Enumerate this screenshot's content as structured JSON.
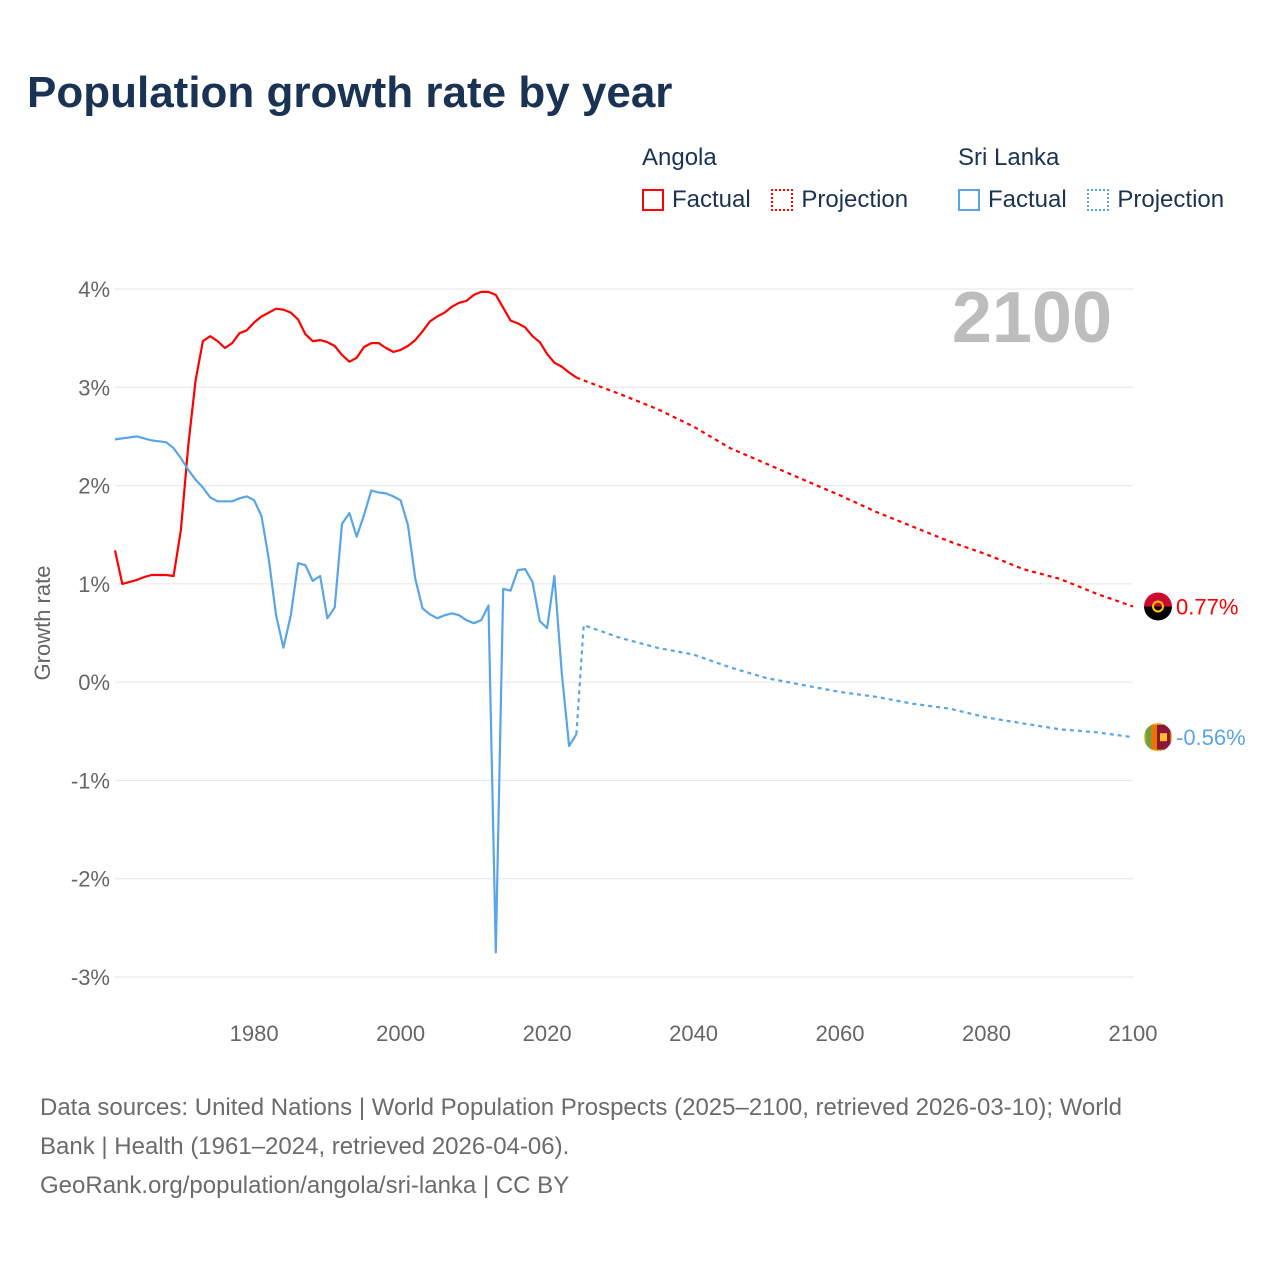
{
  "title": "Population growth rate by year",
  "year_label": "2100",
  "legend": [
    {
      "group": "Angola",
      "factual": "Factual",
      "projection": "Projection",
      "color": "#ff0000"
    },
    {
      "group": "Sri Lanka",
      "factual": "Factual",
      "projection": "Projection",
      "color": "#5aa5e8"
    }
  ],
  "source_line1": "Data sources: United Nations | World Population Prospects (2025–2100, retrieved 2026-03-10); World",
  "source_line2": "Bank | Health (1961–2024, retrieved 2026-04-06).",
  "source_line3": "GeoRank.org/population/angola/sri-lanka | CC BY",
  "chart_data": {
    "type": "line",
    "title": "Population growth rate by year",
    "xlabel": "",
    "ylabel": "Growth rate",
    "xlim": [
      1961,
      2100
    ],
    "ylim": [
      -3.3,
      4.3
    ],
    "x_ticks": [
      1980,
      2000,
      2020,
      2040,
      2060,
      2080,
      2100
    ],
    "y_ticks": [
      {
        "v": 4,
        "label": "4%"
      },
      {
        "v": 3,
        "label": "3%"
      },
      {
        "v": 2,
        "label": "2%"
      },
      {
        "v": 1,
        "label": "1%"
      },
      {
        "v": 0,
        "label": "0%"
      },
      {
        "v": -1,
        "label": "-1%"
      },
      {
        "v": -2,
        "label": "-2%"
      },
      {
        "v": -3,
        "label": "-3%"
      }
    ],
    "grid": true,
    "legend_position": "top-right",
    "series": [
      {
        "name": "Angola",
        "color": "#ff0000",
        "end_label": "0.77%",
        "flag": "angola-flag",
        "factual": {
          "start_year": 1961,
          "values": [
            1.34,
            1.0,
            1.02,
            1.04,
            1.07,
            1.09,
            1.09,
            1.09,
            1.08,
            1.55,
            2.4,
            3.07,
            3.47,
            3.52,
            3.47,
            3.4,
            3.45,
            3.55,
            3.58,
            3.66,
            3.72,
            3.76,
            3.8,
            3.79,
            3.76,
            3.69,
            3.54,
            3.47,
            3.48,
            3.46,
            3.42,
            3.33,
            3.26,
            3.3,
            3.41,
            3.45,
            3.45,
            3.4,
            3.36,
            3.38,
            3.42,
            3.48,
            3.57,
            3.67,
            3.72,
            3.76,
            3.82,
            3.86,
            3.88,
            3.94,
            3.97,
            3.97,
            3.94,
            3.81,
            3.68,
            3.65,
            3.61,
            3.52,
            3.46,
            3.34,
            3.25,
            3.21,
            3.15,
            3.1
          ]
        },
        "projection": {
          "years": [
            2024,
            2025,
            2030,
            2035,
            2040,
            2045,
            2050,
            2055,
            2060,
            2065,
            2070,
            2075,
            2080,
            2085,
            2090,
            2095,
            2100
          ],
          "values": [
            3.1,
            3.07,
            2.93,
            2.78,
            2.6,
            2.38,
            2.22,
            2.06,
            1.9,
            1.73,
            1.58,
            1.43,
            1.3,
            1.15,
            1.05,
            0.9,
            0.77
          ]
        }
      },
      {
        "name": "Sri Lanka",
        "color": "#5aa5e8",
        "end_label": "-0.56%",
        "flag": "sri-lanka-flag",
        "factual": {
          "start_year": 1961,
          "values": [
            2.47,
            2.48,
            2.49,
            2.5,
            2.48,
            2.46,
            2.45,
            2.44,
            2.38,
            2.28,
            2.16,
            2.06,
            1.98,
            1.88,
            1.84,
            1.84,
            1.84,
            1.87,
            1.89,
            1.85,
            1.69,
            1.25,
            0.68,
            0.35,
            0.68,
            1.21,
            1.19,
            1.03,
            1.08,
            0.65,
            0.76,
            1.61,
            1.72,
            1.48,
            1.7,
            1.95,
            1.93,
            1.92,
            1.89,
            1.85,
            1.6,
            1.05,
            0.75,
            0.69,
            0.65,
            0.68,
            0.7,
            0.68,
            0.63,
            0.6,
            0.63,
            0.78,
            -2.75,
            0.95,
            0.93,
            1.14,
            1.15,
            1.02,
            0.62,
            0.55,
            1.08,
            0.1,
            -0.65,
            -0.53
          ]
        },
        "projection": {
          "years": [
            2024,
            2025,
            2030,
            2035,
            2040,
            2045,
            2050,
            2055,
            2060,
            2065,
            2070,
            2075,
            2080,
            2085,
            2090,
            2095,
            2100
          ],
          "values": [
            -0.53,
            0.58,
            0.45,
            0.35,
            0.28,
            0.15,
            0.04,
            -0.03,
            -0.1,
            -0.15,
            -0.22,
            -0.27,
            -0.36,
            -0.42,
            -0.48,
            -0.51,
            -0.56
          ]
        }
      }
    ]
  }
}
